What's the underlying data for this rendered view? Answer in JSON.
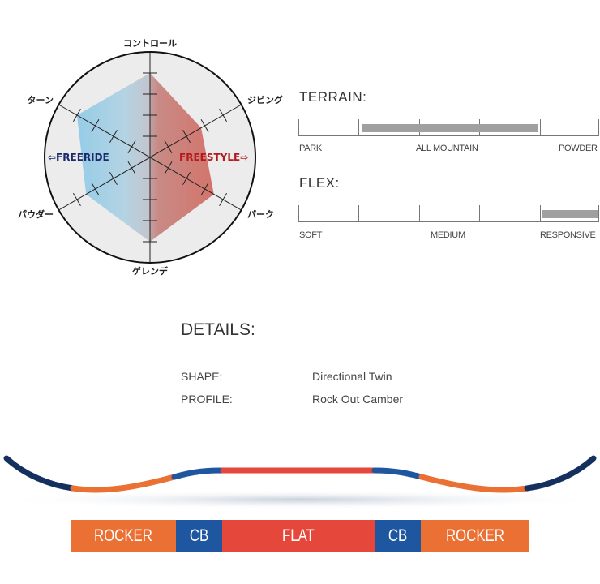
{
  "radar": {
    "axes": [
      "コントロール",
      "ジビング",
      "パーク",
      "ゲレンデ",
      "パウダー",
      "ターン"
    ],
    "values": [
      4,
      2.8,
      3.5,
      4,
      3.5,
      4
    ],
    "max": 4,
    "left_label": "⇦FREERIDE",
    "right_label": "FREESTYLE⇨",
    "colors": {
      "freeride": "#1b2a6b",
      "freestyle": "#b3191d",
      "blue_fill": "#8ecbe9",
      "red_fill": "#e0453a"
    }
  },
  "terrain": {
    "title": "TERRAIN:",
    "labels": [
      "PARK",
      "ALL MOUNTAIN",
      "POWDER"
    ],
    "range_segments": [
      2,
      4
    ],
    "segments": 5
  },
  "flex": {
    "title": "FLEX:",
    "labels": [
      "SOFT",
      "MEDIUM",
      "RESPONSIVE"
    ],
    "range_segments": [
      5,
      5
    ],
    "segments": 5
  },
  "details": {
    "title": "DETAILS:",
    "rows": [
      {
        "label": "SHAPE:",
        "value": "Directional Twin"
      },
      {
        "label": "PROFILE:",
        "value": "Rock Out Camber"
      }
    ]
  },
  "profile": {
    "segments": [
      {
        "label": "ROCKER",
        "color": "#ea7034"
      },
      {
        "label": "CB",
        "color": "#1f56a0"
      },
      {
        "label": "FLAT",
        "color": "#e5473b"
      },
      {
        "label": "CB",
        "color": "#1f56a0"
      },
      {
        "label": "ROCKER",
        "color": "#ea7034"
      }
    ],
    "tip_color": "#14305e"
  }
}
